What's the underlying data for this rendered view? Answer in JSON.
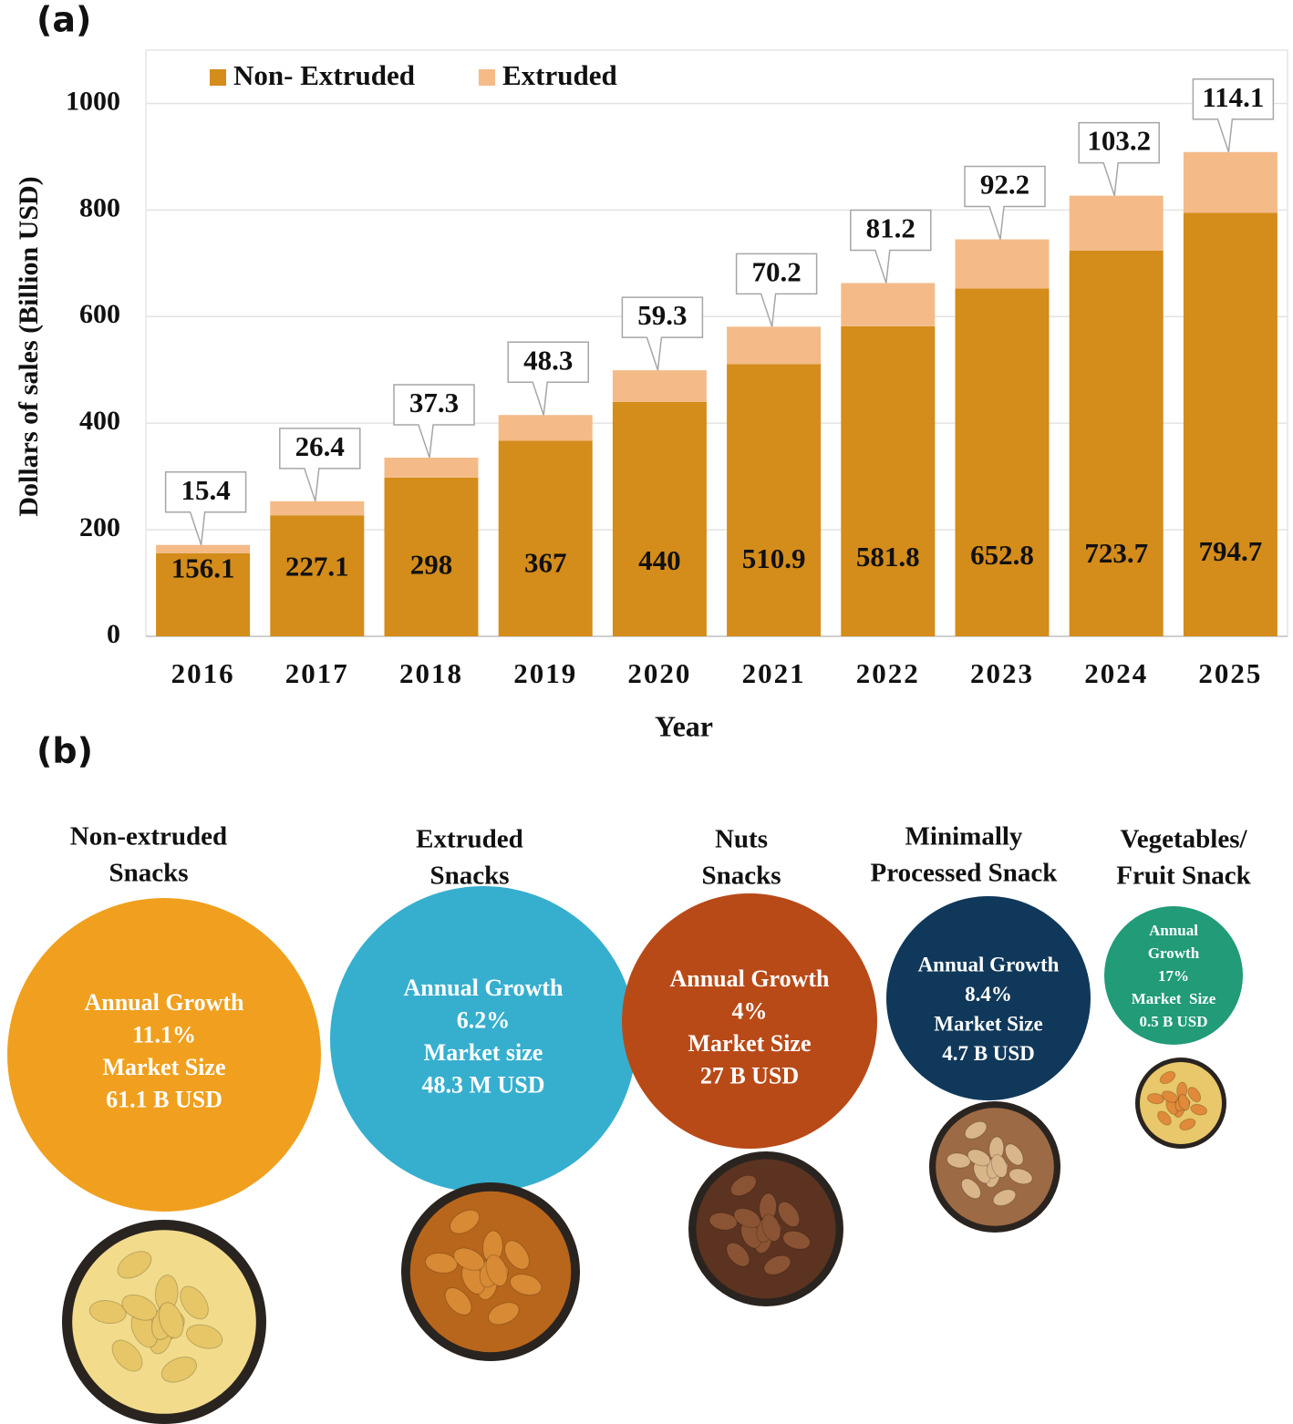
{
  "panel_labels": [
    "(a)",
    "(b)"
  ],
  "chart_data": {
    "type": "bar",
    "stacked": true,
    "xlabel": "Year",
    "ylabel": "Dollars of sales (Billion USD)",
    "categories": [
      "2016",
      "2017",
      "2018",
      "2019",
      "2020",
      "2021",
      "2022",
      "2023",
      "2024",
      "2025"
    ],
    "series": [
      {
        "name": "Non- Extruded",
        "color": "#d48c1a",
        "values": [
          156.1,
          227.1,
          298,
          367,
          440,
          510.9,
          581.8,
          652.8,
          723.7,
          794.7
        ]
      },
      {
        "name": "Extruded",
        "color": "#f4bb88",
        "values": [
          15.4,
          26.4,
          37.3,
          48.3,
          59.3,
          70.2,
          81.2,
          92.2,
          103.2,
          114.1
        ]
      }
    ],
    "ylim": [
      0,
      1100
    ],
    "yticks": [
      0,
      200,
      400,
      600,
      800,
      1000
    ],
    "grid": true,
    "legend": "top-left"
  },
  "snacks": [
    {
      "title": [
        "Non-extruded",
        "Snacks"
      ],
      "lines": [
        "Annual Growth",
        "11.1%",
        "Market Size",
        "61.1 B USD"
      ],
      "color": "#f0a01e"
    },
    {
      "title": [
        "Extruded",
        "Snacks"
      ],
      "lines": [
        "Annual Growth",
        "6.2%",
        "Market size",
        "48.3 M USD"
      ],
      "color": "#36afcf"
    },
    {
      "title": [
        "Nuts",
        "Snacks"
      ],
      "lines": [
        "Annual Growth",
        "4%",
        "Market Size",
        "27 B USD"
      ],
      "color": "#b84a18"
    },
    {
      "title": [
        "Minimally",
        "Processed Snack"
      ],
      "lines": [
        "Annual Growth",
        "8.4%",
        "Market Size",
        "4.7 B USD"
      ],
      "color": "#10385a"
    },
    {
      "title": [
        "Vegetables/",
        "Fruit Snack"
      ],
      "lines": [
        "Annual",
        "Growth",
        "17%",
        "Market  Size",
        "0.5 B USD"
      ],
      "color": "#219b78"
    }
  ]
}
